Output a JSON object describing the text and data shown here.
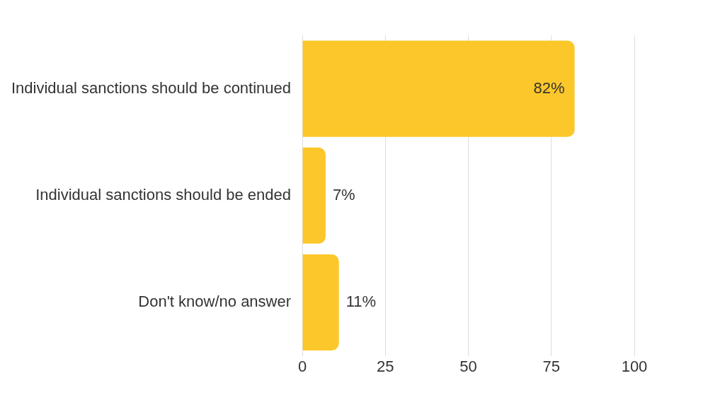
{
  "chart_data": {
    "type": "bar",
    "orientation": "horizontal",
    "categories": [
      "Individual sanctions should be continued",
      "Individual sanctions should be ended",
      "Don't know/no answer"
    ],
    "values": [
      82,
      7,
      11
    ],
    "value_labels": [
      "82%",
      "7%",
      "11%"
    ],
    "color": "#fcc72a",
    "xlim": [
      0,
      100
    ],
    "xticks": [
      0,
      25,
      50,
      75,
      100
    ],
    "grid": "x",
    "legend": false
  }
}
